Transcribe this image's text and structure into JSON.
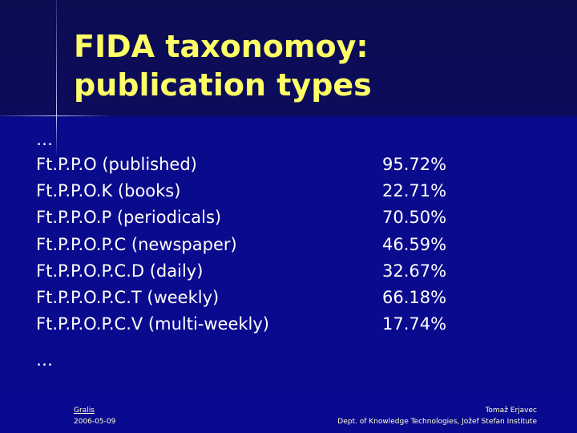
{
  "title_lines": [
    "FIDA taxonomoy:",
    "publication types"
  ],
  "list": {
    "lead": "…",
    "rows": [
      {
        "label": "Ft.P.P.O (published)",
        "value": "95.72%"
      },
      {
        "label": "Ft.P.P.O.K (books)",
        "value": "22.71%"
      },
      {
        "label": "Ft.P.P.O.P (periodicals)",
        "value": "70.50%"
      },
      {
        "label": "Ft.P.P.O.P.C (newspaper)",
        "value": "46.59%"
      },
      {
        "label": "Ft.P.P.O.P.C.D (daily)",
        "value": "32.67%"
      },
      {
        "label": "Ft.P.P.O.P.C.T (weekly)",
        "value": "66.18%"
      },
      {
        "label": "Ft.P.P.O.P.C.V (multi-weekly)",
        "value": "17.74%"
      }
    ],
    "tail": "…"
  },
  "footer": {
    "left": {
      "link": "Gralis",
      "date": "2006-05-09"
    },
    "right": {
      "author": "Tomaž Erjavec",
      "affiliation": "Dept. of Knowledge Technologies, Jožef Stefan Institute"
    }
  }
}
